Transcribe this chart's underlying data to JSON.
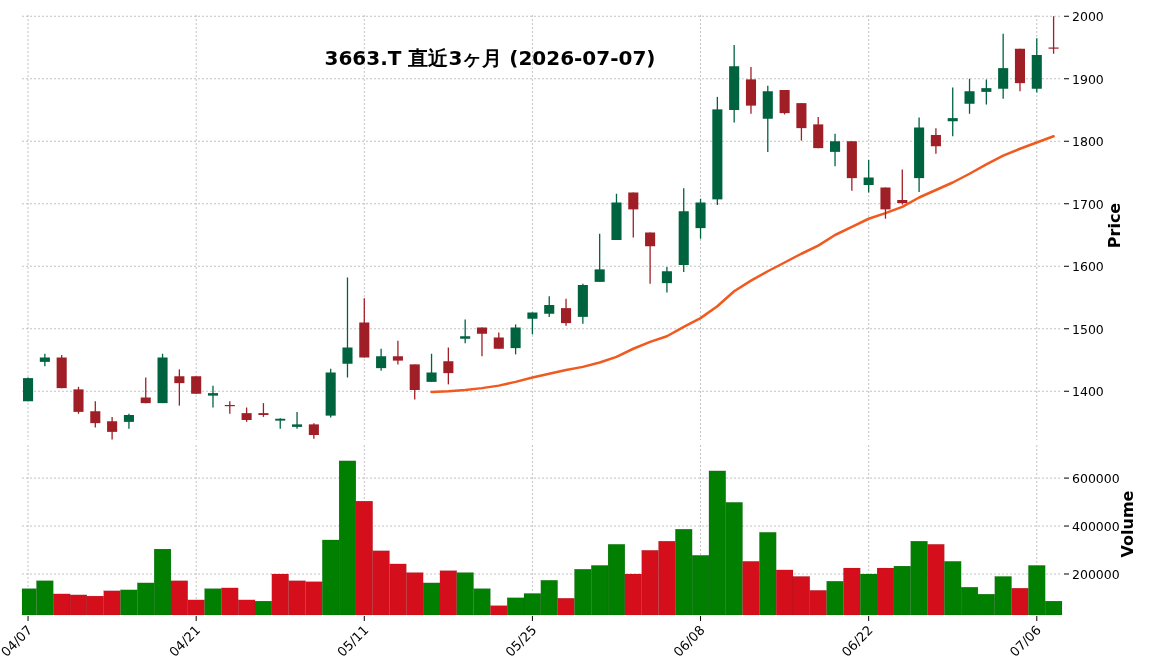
{
  "chart_data": [
    {
      "type": "candlestick",
      "title": "3663.T  直近3ヶ月  (2026-07-07)",
      "ylabel": "Price",
      "ohlc": [
        [
          1384,
          1422,
          1384,
          1421
        ],
        [
          1447,
          1460,
          1440,
          1454
        ],
        [
          1454,
          1458,
          1405,
          1405
        ],
        [
          1403,
          1407,
          1364,
          1367
        ],
        [
          1368,
          1384,
          1342,
          1349
        ],
        [
          1352,
          1359,
          1323,
          1335
        ],
        [
          1351,
          1364,
          1340,
          1362
        ],
        [
          1390,
          1422,
          1381,
          1381
        ],
        [
          1381,
          1460,
          1381,
          1454
        ],
        [
          1424,
          1435,
          1377,
          1413
        ],
        [
          1424,
          1424,
          1396,
          1396
        ],
        [
          1393,
          1409,
          1374,
          1397
        ],
        [
          1378,
          1384,
          1364,
          1377
        ],
        [
          1365,
          1374,
          1351,
          1354
        ],
        [
          1365,
          1381,
          1359,
          1362
        ],
        [
          1353,
          1357,
          1340,
          1356
        ],
        [
          1343,
          1367,
          1340,
          1347
        ],
        [
          1347,
          1349,
          1324,
          1330
        ],
        [
          1361,
          1436,
          1358,
          1430
        ],
        [
          1444,
          1582,
          1422,
          1470
        ],
        [
          1510,
          1549,
          1454,
          1454
        ],
        [
          1437,
          1468,
          1433,
          1456
        ],
        [
          1456,
          1481,
          1443,
          1449
        ],
        [
          1443,
          1443,
          1387,
          1402
        ],
        [
          1415,
          1460,
          1415,
          1430
        ],
        [
          1448,
          1470,
          1411,
          1429
        ],
        [
          1484,
          1515,
          1477,
          1488
        ],
        [
          1502,
          1502,
          1456,
          1492
        ],
        [
          1486,
          1494,
          1468,
          1468
        ],
        [
          1469,
          1507,
          1459,
          1502
        ],
        [
          1516,
          1526,
          1491,
          1526
        ],
        [
          1524,
          1552,
          1519,
          1538
        ],
        [
          1533,
          1548,
          1505,
          1509
        ],
        [
          1519,
          1572,
          1508,
          1570
        ],
        [
          1575,
          1652,
          1575,
          1595
        ],
        [
          1642,
          1716,
          1642,
          1702
        ],
        [
          1718,
          1718,
          1646,
          1691
        ],
        [
          1654,
          1654,
          1572,
          1632
        ],
        [
          1573,
          1599,
          1558,
          1592
        ],
        [
          1602,
          1725,
          1591,
          1688
        ],
        [
          1661,
          1708,
          1644,
          1702
        ],
        [
          1707,
          1871,
          1698,
          1851
        ],
        [
          1850,
          1954,
          1830,
          1920
        ],
        [
          1899,
          1919,
          1844,
          1857
        ],
        [
          1836,
          1889,
          1783,
          1880
        ],
        [
          1882,
          1882,
          1843,
          1845
        ],
        [
          1861,
          1861,
          1801,
          1821
        ],
        [
          1827,
          1839,
          1789,
          1789
        ],
        [
          1783,
          1812,
          1760,
          1800
        ],
        [
          1800,
          1800,
          1721,
          1741
        ],
        [
          1730,
          1770,
          1718,
          1742
        ],
        [
          1726,
          1726,
          1676,
          1691
        ],
        [
          1706,
          1755,
          1699,
          1701
        ],
        [
          1741,
          1838,
          1719,
          1822
        ],
        [
          1810,
          1821,
          1780,
          1792
        ],
        [
          1832,
          1886,
          1808,
          1837
        ],
        [
          1860,
          1900,
          1844,
          1880
        ],
        [
          1879,
          1899,
          1859,
          1885
        ],
        [
          1884,
          1972,
          1868,
          1917
        ],
        [
          1948,
          1948,
          1880,
          1893
        ],
        [
          1884,
          1965,
          1878,
          1938
        ],
        [
          1950,
          2000,
          1940,
          1949
        ]
      ],
      "colors": [
        "#006340",
        "#006340",
        "#a01f27",
        "#a01f27",
        "#a01f27",
        "#a01f27",
        "#006340",
        "#a01f27",
        "#006340",
        "#a01f27",
        "#a01f27",
        "#006340",
        "#a01f27",
        "#a01f27",
        "#a01f27",
        "#006340",
        "#006340",
        "#a01f27",
        "#006340",
        "#006340",
        "#a01f27",
        "#006340",
        "#a01f27",
        "#a01f27",
        "#006340",
        "#a01f27",
        "#006340",
        "#a01f27",
        "#a01f27",
        "#006340",
        "#006340",
        "#006340",
        "#a01f27",
        "#006340",
        "#006340",
        "#006340",
        "#a01f27",
        "#a01f27",
        "#006340",
        "#006340",
        "#006340",
        "#006340",
        "#006340",
        "#a01f27",
        "#006340",
        "#a01f27",
        "#a01f27",
        "#a01f27",
        "#006340",
        "#a01f27",
        "#006340",
        "#a01f27",
        "#a01f27",
        "#006340",
        "#a01f27",
        "#006340",
        "#006340",
        "#006340",
        "#006340",
        "#a01f27",
        "#006340",
        "#a01f27"
      ],
      "series": [
        {
          "type": "line",
          "color": "#f05a1e",
          "values": [
            null,
            null,
            null,
            null,
            null,
            null,
            null,
            null,
            null,
            null,
            null,
            null,
            null,
            null,
            null,
            null,
            null,
            null,
            null,
            null,
            null,
            null,
            null,
            null,
            1399,
            1400,
            1402,
            1405,
            1409,
            1415,
            1422,
            1428,
            1434,
            1439,
            1446,
            1455,
            1468,
            1479,
            1488,
            1503,
            1517,
            1536,
            1560,
            1577,
            1592,
            1606,
            1620,
            1633,
            1650,
            1663,
            1676,
            1685,
            1695,
            1710,
            1722,
            1734,
            1748,
            1763,
            1777,
            1788,
            1798,
            1808
          ]
        }
      ],
      "ylim": [
        1322,
        2002
      ],
      "yticks": [
        1400,
        1500,
        1600,
        1700,
        1800,
        1900,
        2000
      ],
      "grid": true,
      "tick_labels": "y"
    },
    {
      "type": "bar",
      "ylabel": "Volume",
      "categories": [
        "04/07",
        null,
        null,
        null,
        null,
        null,
        null,
        null,
        null,
        null,
        "04/21",
        null,
        null,
        null,
        null,
        null,
        null,
        null,
        null,
        null,
        "05/11",
        null,
        null,
        null,
        null,
        null,
        null,
        null,
        null,
        null,
        "05/25",
        null,
        null,
        null,
        null,
        null,
        null,
        null,
        null,
        null,
        "06/08",
        null,
        null,
        null,
        null,
        null,
        null,
        null,
        null,
        null,
        "06/22",
        null,
        null,
        null,
        null,
        null,
        null,
        null,
        null,
        null,
        "07/06",
        null
      ],
      "values": [
        139000,
        172000,
        117000,
        113000,
        108000,
        130000,
        134000,
        163000,
        304000,
        172000,
        92000,
        139000,
        142000,
        92000,
        87000,
        200000,
        172000,
        168000,
        342000,
        672000,
        504000,
        297000,
        242000,
        206000,
        163000,
        214000,
        206000,
        139000,
        68000,
        101000,
        119000,
        174000,
        99000,
        220000,
        236000,
        324000,
        200000,
        299000,
        337000,
        387000,
        278000,
        630000,
        499000,
        253000,
        374000,
        217000,
        190000,
        132000,
        170000,
        225000,
        200000,
        225000,
        233000,
        337000,
        324000,
        253000,
        145000,
        116000,
        190000,
        141000,
        236000,
        87000
      ],
      "colors": [
        "#007f00",
        "#007f00",
        "#d40f1b",
        "#d40f1b",
        "#d40f1b",
        "#d40f1b",
        "#007f00",
        "#007f00",
        "#007f00",
        "#d40f1b",
        "#d40f1b",
        "#007f00",
        "#d40f1b",
        "#d40f1b",
        "#007f00",
        "#d40f1b",
        "#d40f1b",
        "#d40f1b",
        "#007f00",
        "#007f00",
        "#d40f1b",
        "#d40f1b",
        "#d40f1b",
        "#d40f1b",
        "#007f00",
        "#d40f1b",
        "#007f00",
        "#007f00",
        "#d40f1b",
        "#007f00",
        "#007f00",
        "#007f00",
        "#d40f1b",
        "#007f00",
        "#007f00",
        "#007f00",
        "#d40f1b",
        "#d40f1b",
        "#d40f1b",
        "#007f00",
        "#007f00",
        "#007f00",
        "#007f00",
        "#d40f1b",
        "#007f00",
        "#d40f1b",
        "#d40f1b",
        "#d40f1b",
        "#007f00",
        "#d40f1b",
        "#007f00",
        "#d40f1b",
        "#007f00",
        "#007f00",
        "#d40f1b",
        "#007f00",
        "#007f00",
        "#007f00",
        "#007f00",
        "#d40f1b",
        "#007f00",
        "#007f00"
      ],
      "ylim": [
        29000,
        738000
      ],
      "yticks": [
        200000,
        400000,
        600000
      ],
      "grid": true
    }
  ]
}
